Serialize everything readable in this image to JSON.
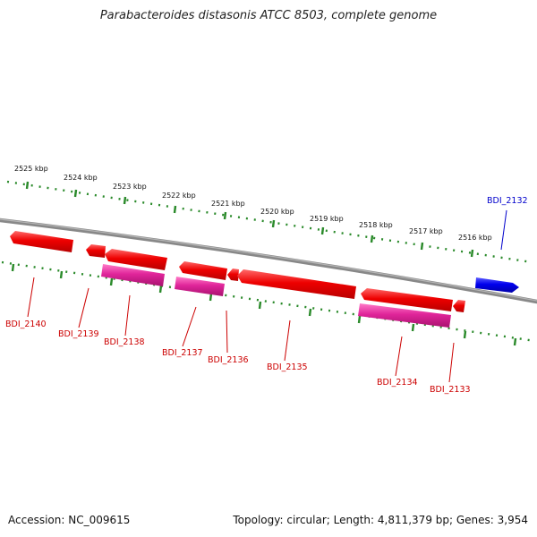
{
  "title": "Parabacteroides distasonis ATCC 8503, complete genome",
  "accession": "Accession: NC_009615",
  "summary": "Topology: circular; Length: 4,811,379 bp; Genes: 3,954",
  "kbp_labels": [
    "2525 kbp",
    "2524 kbp",
    "2523 kbp",
    "2522 kbp",
    "2521 kbp",
    "2520 kbp",
    "2519 kbp",
    "2518 kbp",
    "2517 kbp",
    "2516 kbp"
  ],
  "gene_labels": [
    {
      "text": "BDI_2140",
      "strand": "reverse"
    },
    {
      "text": "BDI_2139",
      "strand": "reverse"
    },
    {
      "text": "BDI_2138",
      "strand": "reverse"
    },
    {
      "text": "BDI_2137",
      "strand": "reverse"
    },
    {
      "text": "BDI_2136",
      "strand": "reverse"
    },
    {
      "text": "BDI_2135",
      "strand": "reverse"
    },
    {
      "text": "BDI_2134",
      "strand": "reverse"
    },
    {
      "text": "BDI_2133",
      "strand": "reverse"
    },
    {
      "text": "BDI_2132",
      "strand": "forward"
    }
  ],
  "colors": {
    "reverse_gene": "#ee0000",
    "reverse_gene_alt": "#e0259a",
    "forward_gene": "#0000ee",
    "backbone": "#888888",
    "ticks": "#2a8a2a",
    "reverse_label": "#cc0000",
    "forward_label": "#0000cc"
  }
}
